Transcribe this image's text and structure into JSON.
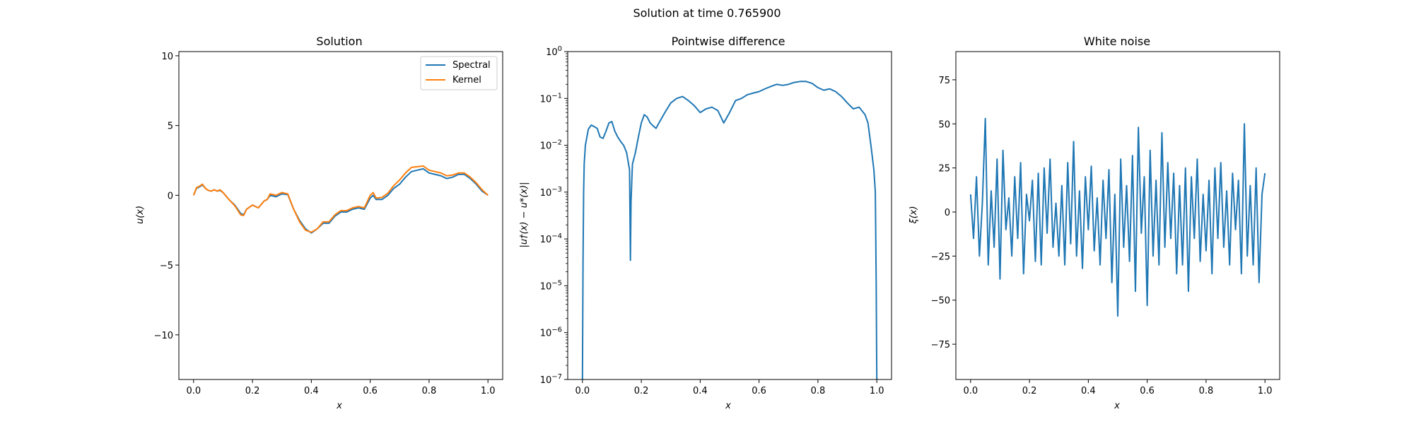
{
  "figure": {
    "suptitle": "Solution at time 0.765900"
  },
  "chart_data": [
    {
      "type": "line",
      "title": "Solution",
      "xlabel": "x",
      "ylabel": "u(x)",
      "xlim": [
        -0.05,
        1.05
      ],
      "ylim": [
        -13.2,
        10.3
      ],
      "xticks": [
        0.0,
        0.2,
        0.4,
        0.6,
        0.8,
        1.0
      ],
      "xtick_labels": [
        "0.0",
        "0.2",
        "0.4",
        "0.6",
        "0.8",
        "1.0"
      ],
      "yticks": [
        -10,
        -5,
        0,
        5,
        10
      ],
      "ytick_labels": [
        "−10",
        "−5",
        "0",
        "5",
        "10"
      ],
      "grid": false,
      "legend_position": "top-right",
      "series": [
        {
          "name": "Spectral",
          "color": "#1f77b4",
          "x": [
            0.0,
            0.01,
            0.02,
            0.03,
            0.04,
            0.05,
            0.06,
            0.07,
            0.08,
            0.09,
            0.1,
            0.12,
            0.14,
            0.16,
            0.17,
            0.18,
            0.2,
            0.22,
            0.24,
            0.25,
            0.26,
            0.28,
            0.3,
            0.32,
            0.34,
            0.36,
            0.38,
            0.4,
            0.42,
            0.44,
            0.46,
            0.48,
            0.5,
            0.52,
            0.54,
            0.56,
            0.58,
            0.6,
            0.61,
            0.62,
            0.64,
            0.66,
            0.68,
            0.7,
            0.72,
            0.74,
            0.76,
            0.78,
            0.8,
            0.82,
            0.84,
            0.86,
            0.88,
            0.9,
            0.92,
            0.94,
            0.96,
            0.98,
            1.0
          ],
          "y": [
            0.0,
            0.5,
            0.6,
            0.75,
            0.5,
            0.35,
            0.3,
            0.4,
            0.3,
            0.35,
            0.2,
            -0.3,
            -0.7,
            -1.3,
            -1.4,
            -1.0,
            -0.7,
            -0.9,
            -0.4,
            -0.3,
            0.0,
            -0.1,
            0.1,
            0.05,
            -1.0,
            -1.8,
            -2.4,
            -2.7,
            -2.4,
            -2.0,
            -2.0,
            -1.5,
            -1.2,
            -1.2,
            -1.0,
            -0.9,
            -1.0,
            -0.2,
            0.0,
            -0.3,
            -0.3,
            0.0,
            0.5,
            0.8,
            1.3,
            1.7,
            1.8,
            1.9,
            1.6,
            1.5,
            1.4,
            1.2,
            1.3,
            1.5,
            1.5,
            1.2,
            0.8,
            0.3,
            0.0
          ]
        },
        {
          "name": "Kernel",
          "color": "#ff7f0e",
          "x": [
            0.0,
            0.01,
            0.02,
            0.03,
            0.04,
            0.05,
            0.06,
            0.07,
            0.08,
            0.09,
            0.1,
            0.12,
            0.14,
            0.16,
            0.17,
            0.18,
            0.2,
            0.22,
            0.24,
            0.25,
            0.26,
            0.28,
            0.3,
            0.32,
            0.34,
            0.36,
            0.38,
            0.4,
            0.42,
            0.44,
            0.46,
            0.48,
            0.5,
            0.52,
            0.54,
            0.56,
            0.58,
            0.6,
            0.61,
            0.62,
            0.64,
            0.66,
            0.68,
            0.7,
            0.72,
            0.74,
            0.76,
            0.78,
            0.8,
            0.82,
            0.84,
            0.86,
            0.88,
            0.9,
            0.92,
            0.94,
            0.96,
            0.98,
            1.0
          ],
          "y": [
            0.0,
            0.55,
            0.65,
            0.8,
            0.5,
            0.35,
            0.3,
            0.4,
            0.3,
            0.4,
            0.2,
            -0.3,
            -0.75,
            -1.4,
            -1.45,
            -1.0,
            -0.7,
            -0.9,
            -0.4,
            -0.3,
            0.1,
            0.0,
            0.2,
            0.1,
            -1.0,
            -1.9,
            -2.5,
            -2.65,
            -2.4,
            -1.9,
            -1.9,
            -1.4,
            -1.1,
            -1.1,
            -0.9,
            -0.8,
            -0.9,
            0.0,
            0.2,
            -0.2,
            -0.15,
            0.15,
            0.7,
            1.1,
            1.6,
            2.0,
            2.05,
            2.1,
            1.8,
            1.7,
            1.6,
            1.4,
            1.45,
            1.6,
            1.6,
            1.3,
            0.9,
            0.4,
            0.0
          ]
        }
      ]
    },
    {
      "type": "line",
      "title": "Pointwise difference",
      "xlabel": "x",
      "ylabel": "|u†(x) − u*(x)|",
      "xlim": [
        -0.05,
        1.05
      ],
      "ylim": [
        1e-07,
        1
      ],
      "y_scale": "log",
      "xticks": [
        0.0,
        0.2,
        0.4,
        0.6,
        0.8,
        1.0
      ],
      "xtick_labels": [
        "0.0",
        "0.2",
        "0.4",
        "0.6",
        "0.8",
        "1.0"
      ],
      "ytick_exponents": [
        -7,
        -6,
        -5,
        -4,
        -3,
        -2,
        -1,
        0
      ],
      "grid": false,
      "series": [
        {
          "color": "#1f77b4",
          "x": [
            0.0,
            0.002,
            0.004,
            0.006,
            0.01,
            0.02,
            0.03,
            0.04,
            0.05,
            0.06,
            0.07,
            0.08,
            0.09,
            0.1,
            0.11,
            0.12,
            0.13,
            0.14,
            0.15,
            0.16,
            0.163,
            0.165,
            0.168,
            0.17,
            0.18,
            0.19,
            0.2,
            0.21,
            0.22,
            0.23,
            0.24,
            0.25,
            0.26,
            0.28,
            0.3,
            0.32,
            0.34,
            0.36,
            0.38,
            0.4,
            0.42,
            0.44,
            0.46,
            0.48,
            0.5,
            0.52,
            0.54,
            0.56,
            0.58,
            0.6,
            0.62,
            0.64,
            0.66,
            0.68,
            0.7,
            0.72,
            0.74,
            0.76,
            0.78,
            0.8,
            0.82,
            0.84,
            0.86,
            0.88,
            0.9,
            0.92,
            0.94,
            0.96,
            0.97,
            0.98,
            0.99,
            0.995,
            0.998,
            1.0
          ],
          "y": [
            1e-07,
            3e-05,
            0.001,
            0.004,
            0.01,
            0.022,
            0.027,
            0.025,
            0.023,
            0.015,
            0.014,
            0.02,
            0.03,
            0.032,
            0.02,
            0.015,
            0.012,
            0.01,
            0.007,
            0.003,
            3.5e-05,
            0.0006,
            0.002,
            0.004,
            0.007,
            0.015,
            0.03,
            0.045,
            0.04,
            0.03,
            0.026,
            0.023,
            0.03,
            0.05,
            0.08,
            0.1,
            0.11,
            0.09,
            0.07,
            0.05,
            0.06,
            0.065,
            0.055,
            0.03,
            0.05,
            0.09,
            0.1,
            0.12,
            0.13,
            0.14,
            0.16,
            0.18,
            0.2,
            0.19,
            0.2,
            0.22,
            0.23,
            0.23,
            0.21,
            0.17,
            0.15,
            0.16,
            0.14,
            0.11,
            0.08,
            0.06,
            0.065,
            0.045,
            0.03,
            0.01,
            0.003,
            0.001,
            1e-05,
            1e-07
          ]
        }
      ]
    },
    {
      "type": "line",
      "title": "White noise",
      "xlabel": "x",
      "ylabel": "ξ(x)",
      "xlim": [
        -0.05,
        1.05
      ],
      "ylim": [
        -95,
        91
      ],
      "xticks": [
        0.0,
        0.2,
        0.4,
        0.6,
        0.8,
        1.0
      ],
      "xtick_labels": [
        "0.0",
        "0.2",
        "0.4",
        "0.6",
        "0.8",
        "1.0"
      ],
      "yticks": [
        -75,
        -50,
        -25,
        0,
        25,
        50,
        75
      ],
      "ytick_labels": [
        "−75",
        "−50",
        "−25",
        "0",
        "25",
        "50",
        "75"
      ],
      "grid": false,
      "series": [
        {
          "color": "#1f77b4",
          "x": [
            0.0,
            0.01,
            0.02,
            0.03,
            0.04,
            0.05,
            0.06,
            0.07,
            0.08,
            0.09,
            0.1,
            0.11,
            0.12,
            0.13,
            0.14,
            0.15,
            0.16,
            0.17,
            0.18,
            0.19,
            0.2,
            0.21,
            0.22,
            0.23,
            0.24,
            0.25,
            0.26,
            0.27,
            0.28,
            0.29,
            0.3,
            0.31,
            0.32,
            0.33,
            0.34,
            0.35,
            0.36,
            0.37,
            0.38,
            0.39,
            0.4,
            0.41,
            0.42,
            0.43,
            0.44,
            0.45,
            0.46,
            0.47,
            0.48,
            0.49,
            0.5,
            0.51,
            0.52,
            0.53,
            0.54,
            0.55,
            0.56,
            0.57,
            0.58,
            0.59,
            0.6,
            0.61,
            0.62,
            0.63,
            0.64,
            0.65,
            0.66,
            0.67,
            0.68,
            0.69,
            0.7,
            0.71,
            0.72,
            0.73,
            0.74,
            0.75,
            0.76,
            0.77,
            0.78,
            0.79,
            0.8,
            0.81,
            0.82,
            0.83,
            0.84,
            0.85,
            0.86,
            0.87,
            0.88,
            0.89,
            0.9,
            0.91,
            0.92,
            0.93,
            0.94,
            0.95,
            0.96,
            0.97,
            0.98,
            0.99,
            1.0
          ],
          "y": [
            10,
            -15,
            20,
            -25,
            5,
            53,
            -30,
            12,
            -20,
            30,
            -38,
            35,
            -10,
            8,
            -25,
            20,
            -15,
            28,
            -35,
            10,
            -5,
            18,
            -28,
            22,
            -30,
            25,
            -12,
            30,
            -20,
            5,
            -25,
            15,
            -30,
            28,
            -18,
            40,
            -25,
            12,
            -32,
            20,
            -10,
            26,
            -22,
            8,
            -30,
            18,
            -15,
            24,
            -40,
            10,
            -59,
            30,
            -20,
            15,
            -28,
            32,
            -45,
            48,
            -12,
            20,
            -53,
            35,
            -25,
            18,
            -30,
            45,
            -20,
            28,
            -15,
            22,
            -35,
            15,
            -30,
            25,
            -45,
            20,
            -15,
            30,
            -28,
            10,
            -22,
            18,
            -35,
            25,
            -15,
            28,
            -20,
            12,
            -30,
            22,
            -10,
            18,
            -35,
            50,
            -25,
            15,
            -30,
            25,
            -40,
            10,
            22
          ]
        }
      ]
    }
  ]
}
